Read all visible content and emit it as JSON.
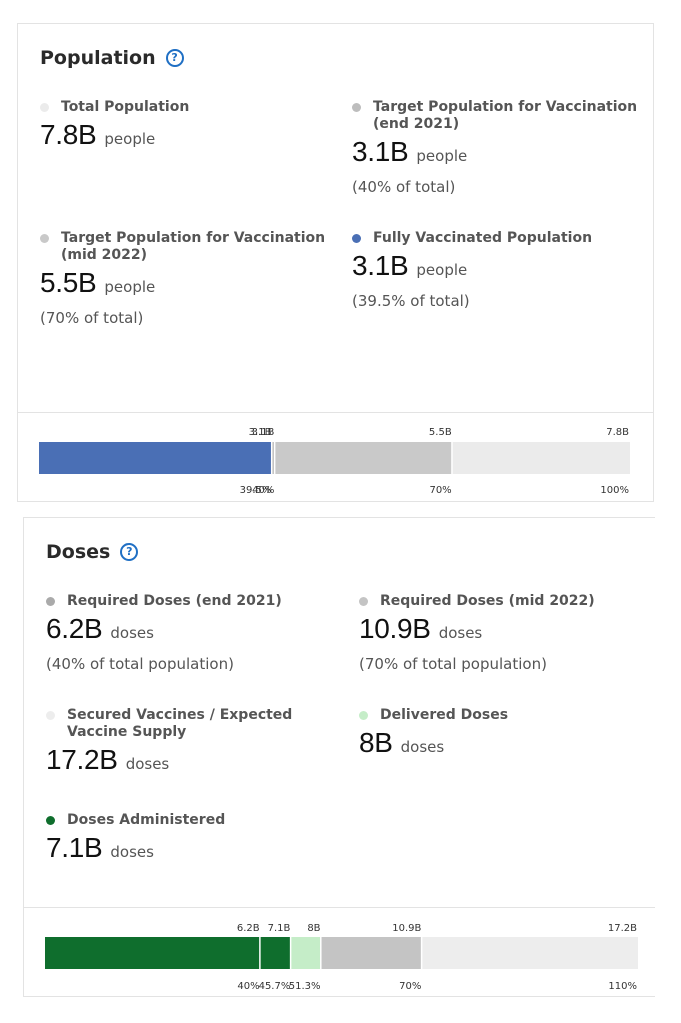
{
  "population": {
    "title": "Population",
    "stats": [
      {
        "label": "Total Population",
        "value": "7.8B",
        "unit": "people",
        "note": "",
        "color": "#ebebeb"
      },
      {
        "label": "Target Population for Vaccination (end 2021)",
        "value": "3.1B",
        "unit": "people",
        "note": "(40% of total)",
        "color": "#bdbdbd"
      },
      {
        "label": "Target Population for Vaccination (mid 2022)",
        "value": "5.5B",
        "unit": "people",
        "note": "(70% of total)",
        "color": "#c9c9c9"
      },
      {
        "label": "Fully Vaccinated Population",
        "value": "3.1B",
        "unit": "people",
        "note": "(39.5% of total)",
        "color": "#4a6fb5"
      }
    ]
  },
  "doses": {
    "title": "Doses",
    "stats": [
      {
        "label": "Required Doses (end 2021)",
        "value": "6.2B",
        "unit": "doses",
        "note": "(40% of total population)",
        "color": "#aaaaaa"
      },
      {
        "label": "Required Doses (mid 2022)",
        "value": "10.9B",
        "unit": "doses",
        "note": "(70% of total population)",
        "color": "#c4c4c4"
      },
      {
        "label": "Secured Vaccines / Expected Vaccine Supply",
        "value": "17.2B",
        "unit": "doses",
        "note": "",
        "color": "#ededed"
      },
      {
        "label": "Delivered Doses",
        "value": "8B",
        "unit": "doses",
        "note": "",
        "color": "#c5edc8"
      },
      {
        "label": "Doses Administered",
        "value": "7.1B",
        "unit": "doses",
        "note": "",
        "color": "#0f6e2d"
      }
    ]
  },
  "chart_data": [
    {
      "type": "bar",
      "orientation": "horizontal-stacked",
      "max_percent": 100,
      "segments": [
        {
          "name": "Fully Vaccinated Population",
          "percent": 39.5,
          "value_label": "3.1B",
          "percent_label": "39.5%",
          "color": "#4a6fb5"
        },
        {
          "name": "Target Population for Vaccination (end 2021)",
          "percent": 40,
          "value_label": "3.1B",
          "percent_label": "40%",
          "color": "#bdbdbd"
        },
        {
          "name": "Target Population for Vaccination (mid 2022)",
          "percent": 70,
          "value_label": "5.5B",
          "percent_label": "70%",
          "color": "#c9c9c9"
        },
        {
          "name": "Total Population",
          "percent": 100,
          "value_label": "7.8B",
          "percent_label": "100%",
          "color": "#ebebeb"
        }
      ]
    },
    {
      "type": "bar",
      "orientation": "horizontal-stacked",
      "max_percent": 110,
      "segments": [
        {
          "name": "Required Doses (end 2021)",
          "percent": 40,
          "value_label": "6.2B",
          "percent_label": "40%",
          "color": "#0f6e2d"
        },
        {
          "name": "Doses Administered",
          "percent": 45.7,
          "value_label": "7.1B",
          "percent_label": "45.7%",
          "color": "#0f6e2d"
        },
        {
          "name": "Delivered Doses",
          "percent": 51.3,
          "value_label": "8B",
          "percent_label": "51.3%",
          "color": "#c5edc8"
        },
        {
          "name": "Required Doses (mid 2022)",
          "percent": 70,
          "value_label": "10.9B",
          "percent_label": "70%",
          "color": "#c4c4c4"
        },
        {
          "name": "Secured Vaccines / Expected Vaccine Supply",
          "percent": 110,
          "value_label": "17.2B",
          "percent_label": "110%",
          "color": "#ededed"
        }
      ]
    }
  ]
}
